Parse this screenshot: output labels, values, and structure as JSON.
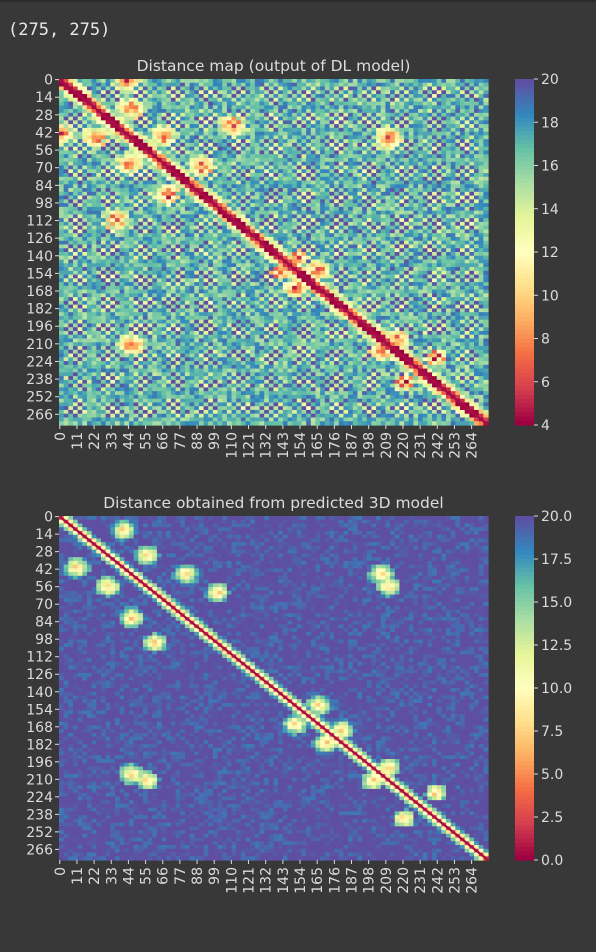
{
  "cell_output": "(275, 275)",
  "chart_data": [
    {
      "type": "heatmap",
      "title": "Distance map (output of DL model)",
      "matrix_shape": [
        275,
        275
      ],
      "xticks": [
        "0",
        "11",
        "22",
        "33",
        "44",
        "55",
        "66",
        "77",
        "88",
        "99",
        "110",
        "121",
        "132",
        "143",
        "154",
        "165",
        "176",
        "187",
        "198",
        "209",
        "220",
        "231",
        "242",
        "253",
        "264"
      ],
      "yticks": [
        "0",
        "14",
        "28",
        "42",
        "56",
        "70",
        "84",
        "98",
        "112",
        "126",
        "140",
        "154",
        "168",
        "182",
        "196",
        "210",
        "224",
        "238",
        "252",
        "266"
      ],
      "colorbar": {
        "min": 4,
        "max": 20,
        "ticks": [
          "4",
          "6",
          "8",
          "10",
          "12",
          "14",
          "16",
          "18",
          "20"
        ],
        "colormap": "Spectral"
      }
    },
    {
      "type": "heatmap",
      "title": "Distance obtained from predicted 3D model",
      "matrix_shape": [
        275,
        275
      ],
      "xticks": [
        "0",
        "11",
        "22",
        "33",
        "44",
        "55",
        "66",
        "77",
        "88",
        "99",
        "110",
        "121",
        "132",
        "143",
        "154",
        "165",
        "176",
        "187",
        "198",
        "209",
        "220",
        "231",
        "242",
        "253",
        "264"
      ],
      "yticks": [
        "0",
        "14",
        "28",
        "42",
        "56",
        "70",
        "84",
        "98",
        "112",
        "126",
        "140",
        "154",
        "168",
        "182",
        "196",
        "210",
        "224",
        "238",
        "252",
        "266"
      ],
      "colorbar": {
        "min": 0,
        "max": 20,
        "ticks": [
          "0.0",
          "2.5",
          "5.0",
          "7.5",
          "10.0",
          "12.5",
          "15.0",
          "17.5",
          "20.0"
        ],
        "colormap": "Spectral"
      }
    }
  ],
  "colors": {
    "background": "#383838",
    "text": "#dcdcdc",
    "spectral": [
      "#9e0142",
      "#d53e4f",
      "#f46d43",
      "#fdae61",
      "#fee08b",
      "#ffffbf",
      "#e6f598",
      "#abdda4",
      "#66c2a5",
      "#3288bd",
      "#5e4fa2"
    ]
  }
}
